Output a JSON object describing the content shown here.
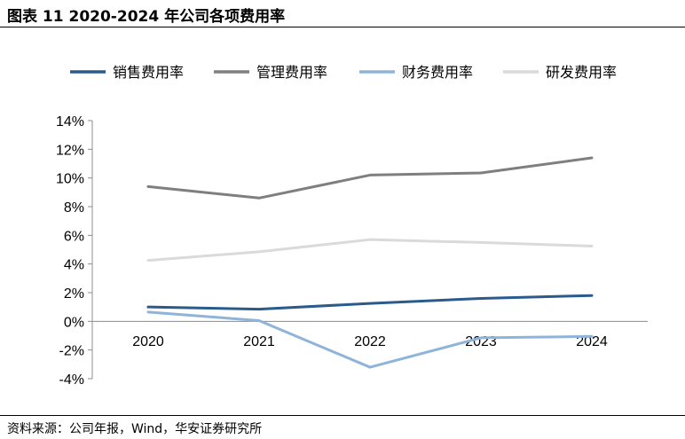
{
  "header": {
    "title": "图表 11  2020-2024 年公司各项费用率"
  },
  "footer": {
    "source": "资料来源：公司年报，Wind，华安证券研究所"
  },
  "chart_data": {
    "type": "line",
    "x": [
      "2020",
      "2021",
      "2022",
      "2023",
      "2024"
    ],
    "series": [
      {
        "name": "销售费用率",
        "color": "#2b5b8c",
        "values": [
          1.0,
          0.85,
          1.25,
          1.6,
          1.8
        ]
      },
      {
        "name": "管理费用率",
        "color": "#7f7f7f",
        "values": [
          9.4,
          8.6,
          10.2,
          10.35,
          11.4
        ]
      },
      {
        "name": "财务费用率",
        "color": "#8fb4d9",
        "values": [
          0.65,
          0.05,
          -3.2,
          -1.15,
          -1.05
        ]
      },
      {
        "name": "研发费用率",
        "color": "#dadada",
        "values": [
          4.25,
          4.85,
          5.7,
          5.5,
          5.25
        ]
      }
    ],
    "yticks": [
      "-4%",
      "-2%",
      "0%",
      "2%",
      "4%",
      "6%",
      "8%",
      "10%",
      "12%",
      "14%"
    ],
    "ylim": [
      -4,
      14
    ],
    "ystep": 2,
    "legend": "top",
    "grid": false
  }
}
